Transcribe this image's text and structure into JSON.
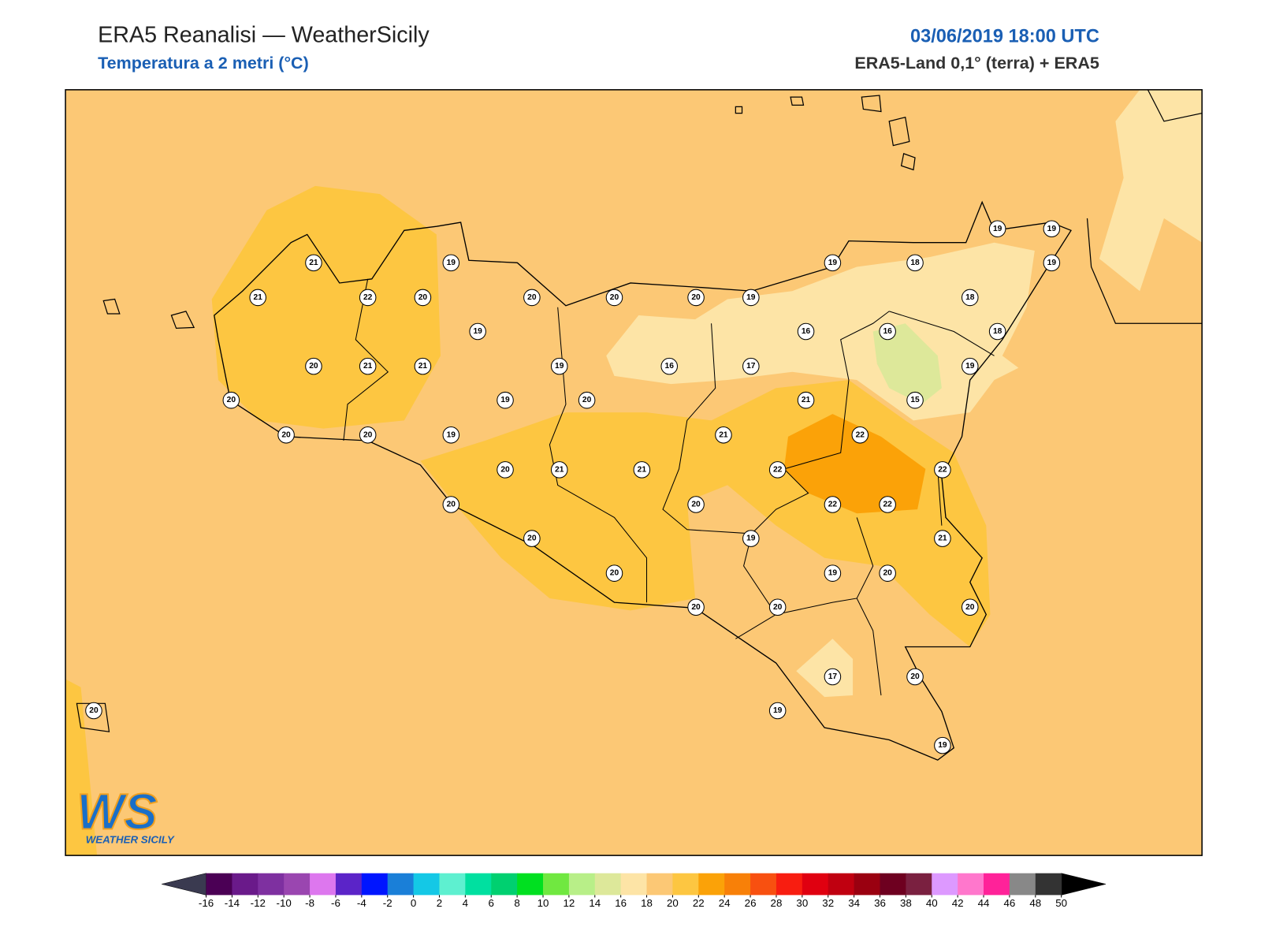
{
  "header": {
    "title": "ERA5 Reanalisi — WeatherSicily",
    "subtitle": "Temperatura a 2 metri (°C)",
    "datetime": "03/06/2019 18:00 UTC",
    "source": "ERA5-Land 0,1° (terra) + ERA5"
  },
  "logo": {
    "mark": "WS",
    "name": "WEATHER SICILY"
  },
  "stations": [
    21,
    19,
    21,
    22,
    20,
    20,
    20,
    20,
    19,
    19,
    18,
    19,
    19,
    19,
    18,
    19,
    16,
    16,
    18,
    20,
    21,
    21,
    19,
    16,
    17,
    19,
    20,
    19,
    20,
    21,
    15,
    20,
    20,
    19,
    21,
    22,
    20,
    21,
    21,
    22,
    22,
    20,
    20,
    22,
    22,
    20,
    19,
    21,
    20,
    19,
    20,
    20,
    20,
    20,
    17,
    20,
    19,
    19,
    20
  ],
  "colorbar": {
    "ticks": [
      -16,
      -14,
      -12,
      -10,
      -8,
      -6,
      -4,
      -2,
      0,
      2,
      4,
      6,
      8,
      10,
      12,
      14,
      16,
      18,
      20,
      22,
      24,
      26,
      28,
      30,
      32,
      34,
      36,
      38,
      40,
      42,
      44,
      46,
      48,
      50
    ],
    "colors": [
      "#4b0055",
      "#6a1a8a",
      "#7e30a0",
      "#9a46b0",
      "#dd77ee",
      "#5b24c8",
      "#0015ff",
      "#1a7fd8",
      "#14c8e6",
      "#5ef0d0",
      "#00e0a0",
      "#00d070",
      "#00e020",
      "#70e840",
      "#b8ef88",
      "#dde89a",
      "#fde4a6",
      "#fcc875",
      "#fdc641",
      "#fba208",
      "#f88008",
      "#f85010",
      "#f81d10",
      "#e00010",
      "#c00010",
      "#9a0010",
      "#6e0020",
      "#7a2040",
      "#dd99ff",
      "#ff77cc",
      "#ff2299",
      "#888888",
      "#333333"
    ],
    "under": "#3a3a50",
    "over": "#000000"
  }
}
